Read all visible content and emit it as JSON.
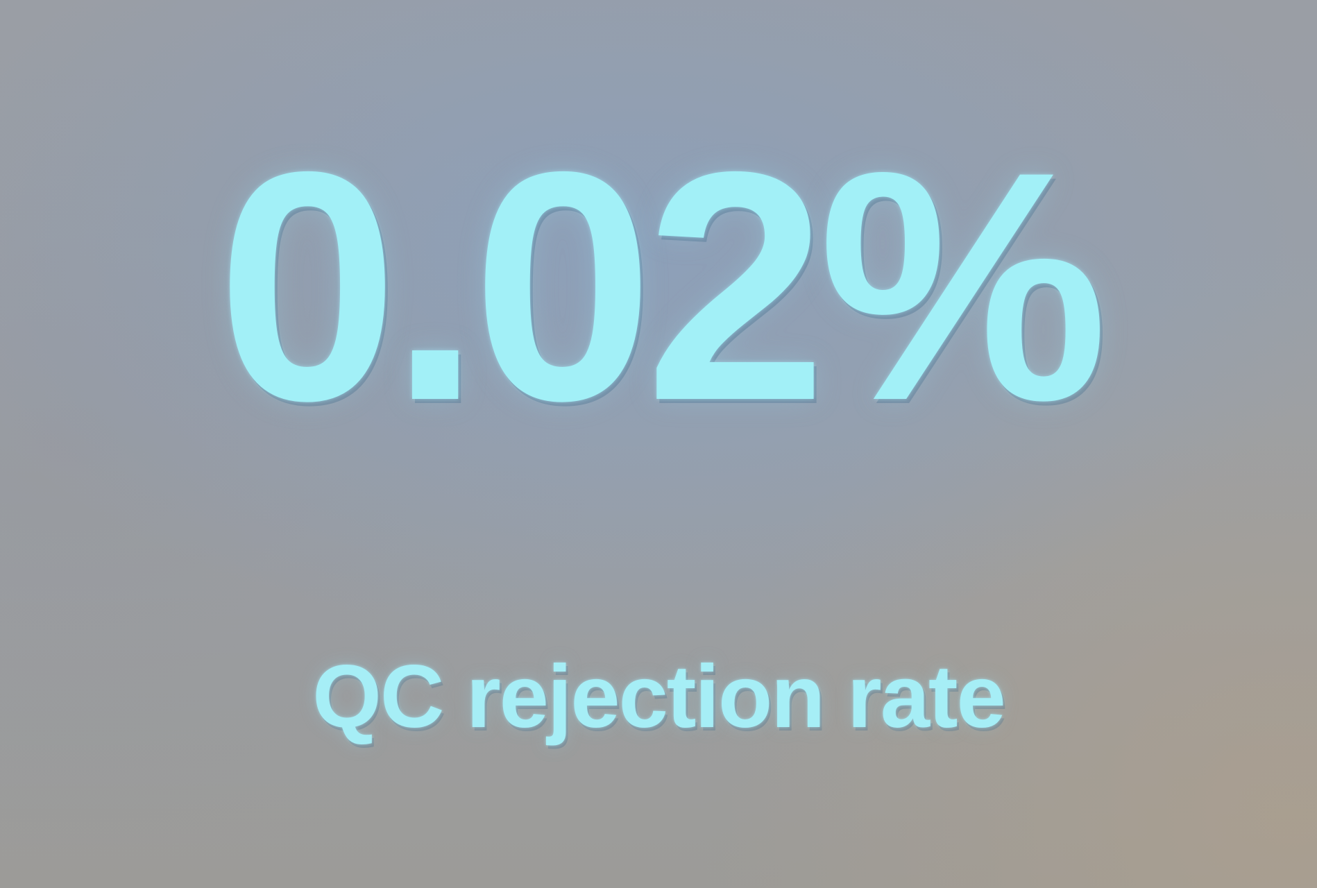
{
  "slide": {
    "value": "0.02%",
    "label": "QC rejection rate"
  },
  "colors": {
    "text": "#a2f0f7",
    "background": "#9a9ea5"
  }
}
